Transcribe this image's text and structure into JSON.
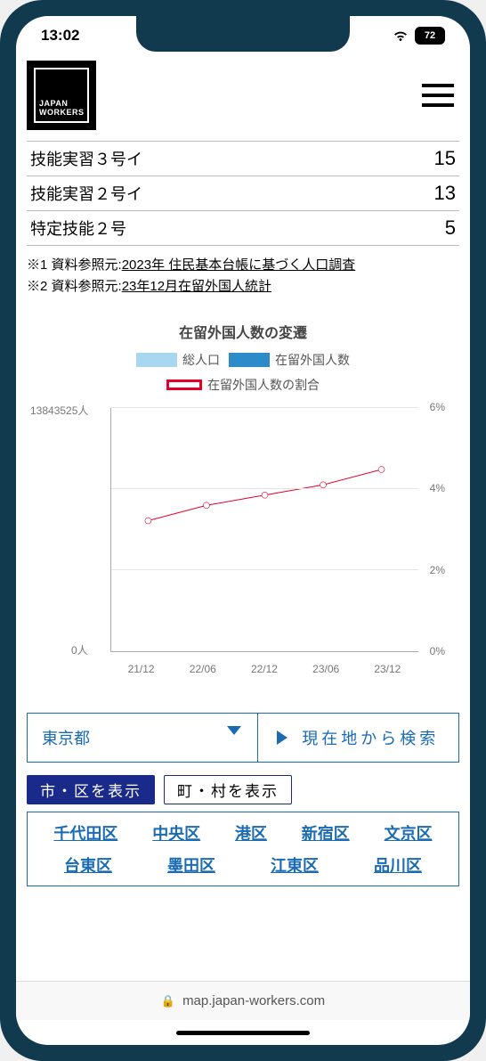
{
  "status": {
    "time": "13:02",
    "battery": "72"
  },
  "logo": {
    "line1": "JAPAN",
    "line2": "WORKERS"
  },
  "table": {
    "rows": [
      {
        "label": "技能実習３号イ",
        "value": "15"
      },
      {
        "label": "技能実習２号イ",
        "value": "13"
      },
      {
        "label": "特定技能２号",
        "value": "5"
      }
    ]
  },
  "refs": {
    "r1_prefix": "※1 資料参照元:",
    "r1_link": "2023年 住民基本台帳に基づく人口調査",
    "r2_prefix": "※2 資料参照元:",
    "r2_link": "23年12月在留外国人統計"
  },
  "chart": {
    "title": "在留外国人数の変遷",
    "legend": {
      "total": "総人口",
      "foreign": "在留外国人数",
      "ratio": "在留外国人数の割合"
    },
    "colors": {
      "total": "#a8d8f0",
      "foreign": "#2d8bc9",
      "ratio_line": "#e4002b",
      "grid": "#e5e5e5",
      "axis": "#aaaaaa",
      "text": "#777777"
    },
    "y_left_max_label": "13843525人",
    "y_left_zero": "0人",
    "y_right_ticks": [
      "6%",
      "4%",
      "2%",
      "0%"
    ],
    "y_right_max": 6,
    "categories": [
      "21/12",
      "22/06",
      "22/12",
      "23/06",
      "23/12"
    ],
    "total_rel_height_pct": [
      96,
      96,
      97,
      98,
      99
    ],
    "foreign_rel_height_pct": [
      4,
      4,
      4.5,
      5,
      5
    ],
    "ratio_pct": [
      3.8,
      4.1,
      4.3,
      4.5,
      4.8
    ],
    "bar_group_left_pct": [
      4,
      23,
      42,
      61,
      80
    ]
  },
  "controls": {
    "dropdown_value": "東京都",
    "locate_label": "現在地から検索"
  },
  "tabs": {
    "city": "市・区を表示",
    "town": "町・村を表示"
  },
  "wards": {
    "row1": [
      "千代田区",
      "中央区",
      "港区",
      "新宿区",
      "文京区"
    ],
    "row2": [
      "台東区",
      "墨田区",
      "江東区",
      "品川区"
    ]
  },
  "browser": {
    "domain": "map.japan-workers.com"
  }
}
